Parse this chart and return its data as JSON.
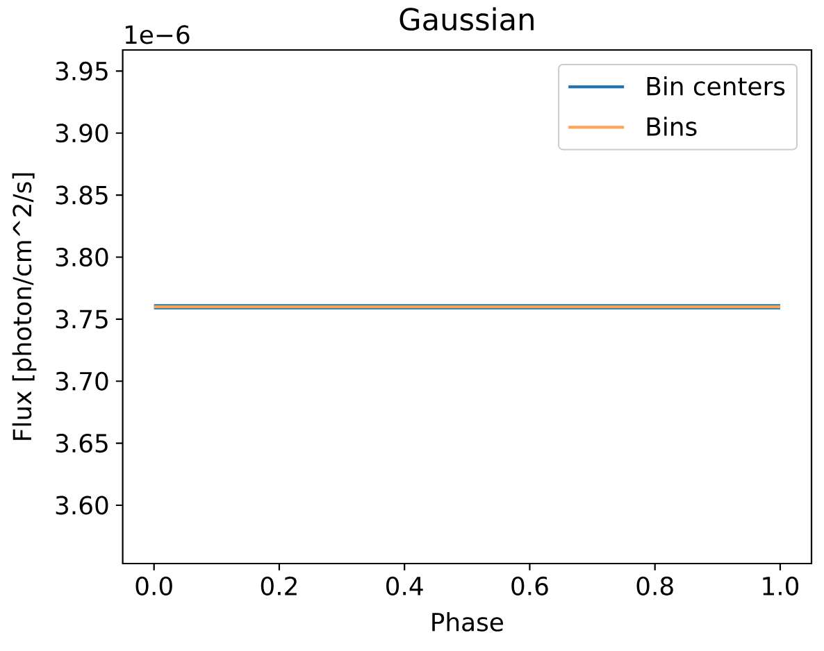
{
  "chart_data": {
    "type": "line",
    "title": "Gaussian",
    "xlabel": "Phase",
    "ylabel": "Flux [photon/cm^2/s]",
    "annotations": [
      "1e−6"
    ],
    "x": [
      0,
      1
    ],
    "series": [
      {
        "name": "Bin centers",
        "color": "#1f77b4",
        "values": [
          3.76,
          3.76
        ]
      },
      {
        "name": "Bins",
        "color": "#ffa556",
        "values": [
          3.76,
          3.76
        ]
      }
    ],
    "xlim": [
      -0.05,
      1.05
    ],
    "ylim": [
      3.553,
      3.967
    ],
    "xticks": [
      {
        "value": 0,
        "label": "0.0"
      },
      0.2,
      0.4,
      0.6,
      0.8,
      {
        "value": 1,
        "label": "1.0"
      }
    ],
    "yticks": [
      {
        "value": 3.6,
        "label": "3.60"
      },
      3.65,
      {
        "value": 3.7,
        "label": "3.70"
      },
      3.75,
      {
        "value": 3.8,
        "label": "3.80"
      },
      3.85,
      {
        "value": 3.9,
        "label": "3.90"
      },
      3.95
    ],
    "legend": "top right"
  }
}
